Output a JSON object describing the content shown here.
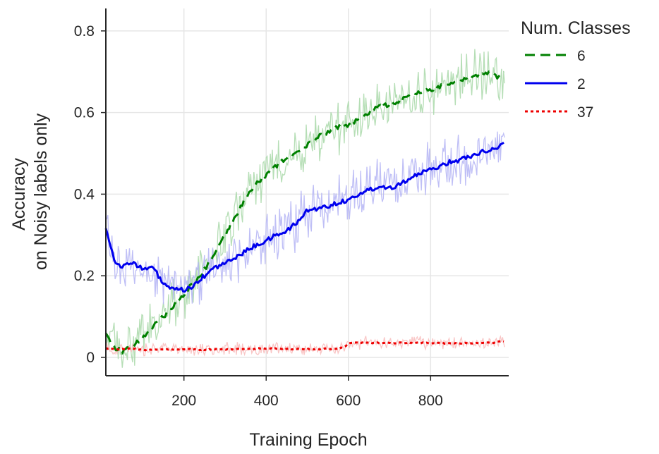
{
  "chart_data": {
    "type": "line",
    "xlabel": "Training Epoch",
    "ylabel": [
      "Accuracy",
      "on Noisy labels only"
    ],
    "xlim": [
      10,
      990
    ],
    "ylim": [
      -0.045,
      0.855
    ],
    "xticks": [
      200,
      400,
      600,
      800
    ],
    "xtick_labels": [
      "200",
      "400",
      "600",
      "800"
    ],
    "yticks": [
      0,
      0.2,
      0.4,
      0.6,
      0.8
    ],
    "ytick_labels": [
      "0",
      "0.2",
      "0.4",
      "0.6",
      "0.8"
    ],
    "grid": true,
    "legend": {
      "title": "Num. Classes",
      "position": "outside-right"
    },
    "series": [
      {
        "name": "6",
        "color": "#008000",
        "raw_color": "#a8d8a8",
        "dash": "dashed",
        "noise": 0.05,
        "x": [
          10,
          30,
          50,
          75,
          100,
          125,
          150,
          175,
          200,
          225,
          250,
          275,
          300,
          325,
          350,
          375,
          400,
          425,
          450,
          475,
          500,
          525,
          550,
          575,
          600,
          625,
          650,
          675,
          700,
          725,
          750,
          775,
          800,
          825,
          850,
          875,
          900,
          925,
          950,
          965,
          980
        ],
        "values": [
          0.06,
          0.025,
          0.015,
          0.025,
          0.05,
          0.075,
          0.1,
          0.125,
          0.155,
          0.185,
          0.215,
          0.255,
          0.3,
          0.345,
          0.39,
          0.425,
          0.445,
          0.47,
          0.49,
          0.5,
          0.52,
          0.54,
          0.55,
          0.565,
          0.57,
          0.585,
          0.6,
          0.615,
          0.62,
          0.63,
          0.64,
          0.65,
          0.655,
          0.665,
          0.675,
          0.68,
          0.685,
          0.695,
          0.7,
          0.685,
          0.7
        ]
      },
      {
        "name": "2",
        "color": "#0000ee",
        "raw_color": "#b4b4f4",
        "dash": "solid",
        "noise": 0.05,
        "x": [
          10,
          20,
          30,
          50,
          75,
          100,
          125,
          150,
          175,
          200,
          225,
          250,
          275,
          300,
          325,
          350,
          375,
          400,
          425,
          450,
          475,
          500,
          525,
          550,
          575,
          600,
          625,
          650,
          675,
          700,
          725,
          750,
          775,
          800,
          825,
          850,
          875,
          900,
          925,
          950,
          965,
          980
        ],
        "values": [
          0.32,
          0.28,
          0.24,
          0.22,
          0.235,
          0.215,
          0.22,
          0.18,
          0.165,
          0.165,
          0.175,
          0.2,
          0.22,
          0.23,
          0.245,
          0.26,
          0.275,
          0.285,
          0.3,
          0.31,
          0.33,
          0.36,
          0.365,
          0.37,
          0.38,
          0.385,
          0.4,
          0.41,
          0.42,
          0.415,
          0.425,
          0.44,
          0.45,
          0.46,
          0.47,
          0.48,
          0.485,
          0.495,
          0.505,
          0.51,
          0.515,
          0.525
        ]
      },
      {
        "name": "37",
        "color": "#ee0000",
        "raw_color": "#f8bcbc",
        "dash": "dotted",
        "noise": 0.012,
        "x": [
          10,
          40,
          75,
          100,
          150,
          200,
          250,
          300,
          350,
          400,
          450,
          500,
          550,
          580,
          595,
          600,
          650,
          700,
          750,
          800,
          850,
          900,
          950,
          980
        ],
        "values": [
          0.022,
          0.02,
          0.022,
          0.018,
          0.02,
          0.02,
          0.019,
          0.02,
          0.021,
          0.022,
          0.021,
          0.02,
          0.021,
          0.022,
          0.028,
          0.035,
          0.036,
          0.035,
          0.036,
          0.035,
          0.034,
          0.035,
          0.036,
          0.04
        ]
      }
    ]
  }
}
